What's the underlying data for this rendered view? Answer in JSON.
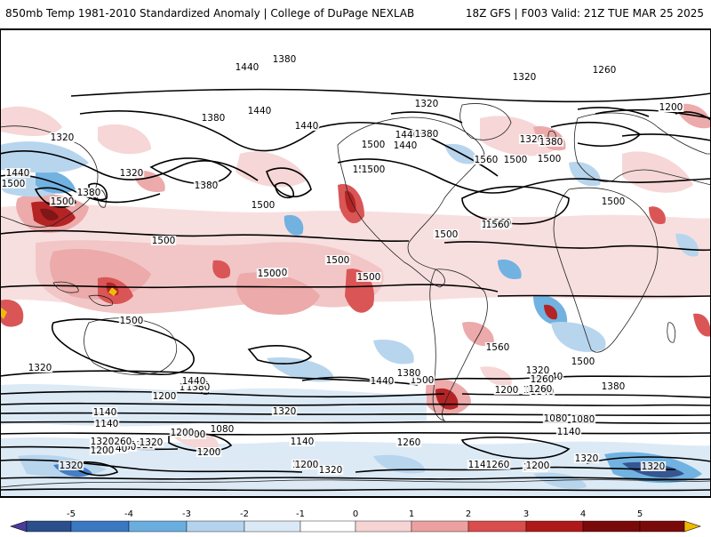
{
  "header": {
    "title": "850mb Temp 1981-2010 Standardized Anomaly | College of DuPage NEXLAB",
    "valid": "18Z GFS | F003 Valid: 21Z TUE MAR 25 2025"
  },
  "contour_labels": [
    "1440",
    "1380",
    "1260",
    "1320",
    "1320",
    "1200",
    "1320",
    "1440",
    "1440",
    "1380",
    "1320",
    "1380",
    "1440",
    "1500",
    "1440",
    "1500",
    "1560",
    "1500",
    "1320",
    "1500",
    "1440",
    "1500",
    "1380",
    "1500",
    "1500",
    "1500",
    "1500",
    "1500",
    "1500",
    "1500",
    "1500",
    "1560",
    "1500",
    "1560",
    "1500",
    "1560",
    "1500",
    "1440",
    "1380",
    "1500",
    "1440",
    "1380",
    "1320",
    "1260",
    "1200",
    "1140",
    "1080",
    "1140",
    "1200",
    "1320",
    "1140",
    "1200",
    "1260",
    "1320",
    "1380",
    "1440",
    "1320",
    "1260",
    "1200",
    "1140",
    "1080",
    "1140",
    "1200",
    "1320",
    "1140",
    "1200",
    "1260",
    "1140",
    "1380",
    "1320",
    "1140",
    "1200",
    "1260",
    "1320",
    "1320",
    "1200",
    "1260",
    "1320",
    "1140",
    "1080",
    "1140",
    "1200",
    "1260",
    "1320",
    "1380",
    "1500",
    "1560",
    "1380",
    "1200"
  ],
  "colorbar": {
    "ticks": [
      "-5",
      "-4",
      "-3",
      "-2",
      "-1",
      "0",
      "1",
      "2",
      "3",
      "4",
      "5"
    ],
    "colors": [
      "#4b3b9a",
      "#2b4e8c",
      "#3a78c2",
      "#6aaee0",
      "#b5d3ee",
      "#dbe9f6",
      "#ffffff",
      "#f6d4d4",
      "#eca0a0",
      "#d94d4d",
      "#b01919",
      "#7a0a0a",
      "#f0b800"
    ]
  }
}
